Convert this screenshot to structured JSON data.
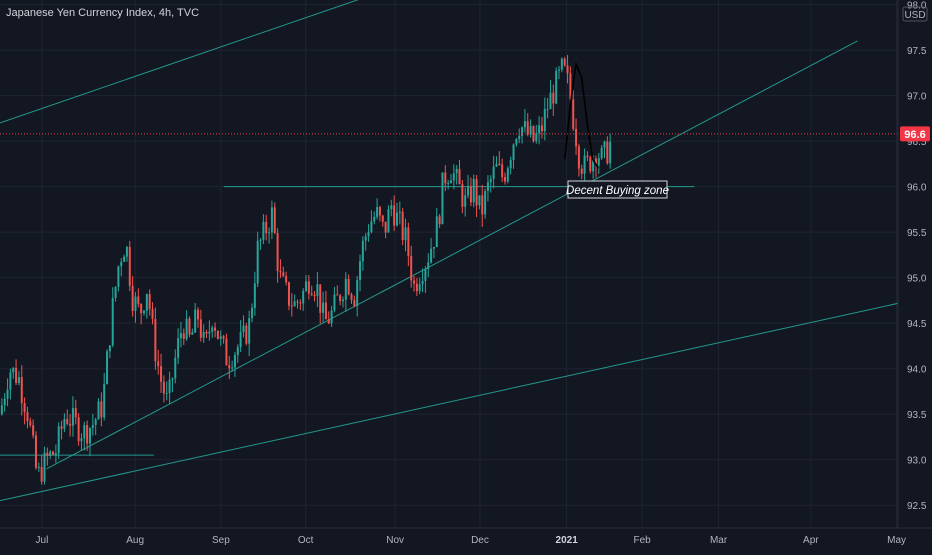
{
  "chart_data": {
    "type": "candlestick",
    "title": "Japanese Yen Currency Index, 4h, TVC",
    "currency": "USD",
    "last_price": "96.6",
    "last_price_value": 96.58,
    "annotation": "Decent Buying zone",
    "ylim": [
      92.25,
      98.05
    ],
    "y_ticks": [
      {
        "value": 92.5,
        "label": "92.5"
      },
      {
        "value": 93.0,
        "label": "93.0"
      },
      {
        "value": 93.5,
        "label": "93.5"
      },
      {
        "value": 94.0,
        "label": "94.0"
      },
      {
        "value": 94.5,
        "label": "94.5"
      },
      {
        "value": 95.0,
        "label": "95.0"
      },
      {
        "value": 95.5,
        "label": "95.5"
      },
      {
        "value": 96.0,
        "label": "96.0"
      },
      {
        "value": 96.5,
        "label": "96.5"
      },
      {
        "value": 97.0,
        "label": "97.0"
      },
      {
        "value": 97.5,
        "label": "97.5"
      },
      {
        "value": 98.0,
        "label": "98.0"
      }
    ],
    "x_ticks": [
      {
        "t": 0.045,
        "label": "Jul",
        "bold": false
      },
      {
        "t": 0.145,
        "label": "Aug",
        "bold": false
      },
      {
        "t": 0.237,
        "label": "Sep",
        "bold": false
      },
      {
        "t": 0.328,
        "label": "Oct",
        "bold": false
      },
      {
        "t": 0.424,
        "label": "Nov",
        "bold": false
      },
      {
        "t": 0.515,
        "label": "Dec",
        "bold": false
      },
      {
        "t": 0.608,
        "label": "2021",
        "bold": true
      },
      {
        "t": 0.689,
        "label": "Feb",
        "bold": false
      },
      {
        "t": 0.771,
        "label": "Mar",
        "bold": false
      },
      {
        "t": 0.87,
        "label": "Apr",
        "bold": false
      },
      {
        "t": 0.962,
        "label": "May",
        "bold": false
      }
    ],
    "price_path": [
      [
        0.0,
        93.5
      ],
      [
        0.01,
        94.0
      ],
      [
        0.02,
        93.9
      ],
      [
        0.03,
        93.5
      ],
      [
        0.04,
        92.8
      ],
      [
        0.05,
        93.0
      ],
      [
        0.06,
        93.1
      ],
      [
        0.07,
        93.5
      ],
      [
        0.08,
        93.4
      ],
      [
        0.09,
        93.3
      ],
      [
        0.1,
        93.4
      ],
      [
        0.11,
        93.6
      ],
      [
        0.12,
        94.6
      ],
      [
        0.128,
        95.2
      ],
      [
        0.135,
        95.4
      ],
      [
        0.142,
        94.8
      ],
      [
        0.15,
        94.6
      ],
      [
        0.158,
        94.9
      ],
      [
        0.165,
        94.3
      ],
      [
        0.172,
        93.9
      ],
      [
        0.18,
        93.6
      ],
      [
        0.188,
        94.1
      ],
      [
        0.196,
        94.5
      ],
      [
        0.204,
        94.3
      ],
      [
        0.212,
        94.6
      ],
      [
        0.22,
        94.2
      ],
      [
        0.228,
        94.6
      ],
      [
        0.236,
        94.3
      ],
      [
        0.244,
        94.1
      ],
      [
        0.252,
        94.2
      ],
      [
        0.26,
        94.3
      ],
      [
        0.268,
        94.5
      ],
      [
        0.276,
        95.3
      ],
      [
        0.284,
        95.5
      ],
      [
        0.292,
        95.7
      ],
      [
        0.3,
        95.0
      ],
      [
        0.308,
        94.8
      ],
      [
        0.316,
        94.7
      ],
      [
        0.324,
        94.8
      ],
      [
        0.332,
        95.0
      ],
      [
        0.34,
        94.9
      ],
      [
        0.348,
        94.5
      ],
      [
        0.356,
        94.6
      ],
      [
        0.364,
        94.8
      ],
      [
        0.372,
        95.0
      ],
      [
        0.38,
        94.8
      ],
      [
        0.388,
        95.3
      ],
      [
        0.396,
        95.6
      ],
      [
        0.404,
        95.7
      ],
      [
        0.412,
        95.5
      ],
      [
        0.42,
        95.8
      ],
      [
        0.428,
        95.6
      ],
      [
        0.436,
        95.4
      ],
      [
        0.444,
        94.9
      ],
      [
        0.452,
        95.1
      ],
      [
        0.458,
        95.2
      ],
      [
        0.464,
        95.4
      ],
      [
        0.47,
        95.6
      ],
      [
        0.476,
        96.1
      ],
      [
        0.484,
        96.2
      ],
      [
        0.492,
        96.0
      ],
      [
        0.5,
        95.8
      ],
      [
        0.508,
        96.0
      ],
      [
        0.516,
        95.7
      ],
      [
        0.524,
        96.0
      ],
      [
        0.532,
        96.2
      ],
      [
        0.54,
        96.1
      ],
      [
        0.548,
        96.4
      ],
      [
        0.556,
        96.7
      ],
      [
        0.564,
        96.6
      ],
      [
        0.572,
        96.5
      ],
      [
        0.58,
        96.6
      ],
      [
        0.588,
        96.9
      ],
      [
        0.596,
        97.1
      ],
      [
        0.604,
        97.3
      ],
      [
        0.61,
        97.1
      ],
      [
        0.616,
        96.7
      ],
      [
        0.622,
        96.3
      ],
      [
        0.628,
        96.2
      ],
      [
        0.634,
        96.3
      ],
      [
        0.64,
        96.4
      ],
      [
        0.646,
        96.3
      ],
      [
        0.652,
        96.4
      ],
      [
        0.656,
        96.5
      ]
    ],
    "trendlines": [
      {
        "x1": 0.0,
        "y1": 96.7,
        "x2": 0.44,
        "y2": 98.25,
        "color": "#26a69a"
      },
      {
        "x1": 0.05,
        "y1": 92.9,
        "x2": 0.92,
        "y2": 97.6,
        "color": "#26a69a"
      },
      {
        "x1": 0.0,
        "y1": 92.55,
        "x2": 1.0,
        "y2": 94.8,
        "color": "#26a69a"
      },
      {
        "x1": 0.0,
        "y1": 93.05,
        "x2": 0.165,
        "y2": 93.05,
        "color": "#26a69a"
      },
      {
        "x1": 0.24,
        "y1": 96.0,
        "x2": 0.745,
        "y2": 96.0,
        "color": "#26a69a"
      }
    ],
    "drawn_path": [
      [
        0.606,
        96.3
      ],
      [
        0.612,
        96.9
      ],
      [
        0.618,
        97.35
      ],
      [
        0.624,
        97.2
      ],
      [
        0.63,
        96.7
      ],
      [
        0.636,
        96.3
      ],
      [
        0.642,
        96.2
      ]
    ],
    "colors": {
      "background": "#131722",
      "grid": "#1f2433",
      "up": "#26a69a",
      "down": "#ef5350",
      "axis_text": "#b2b5be",
      "price_tag": "#f23645",
      "trendline": "#26a69a"
    }
  }
}
